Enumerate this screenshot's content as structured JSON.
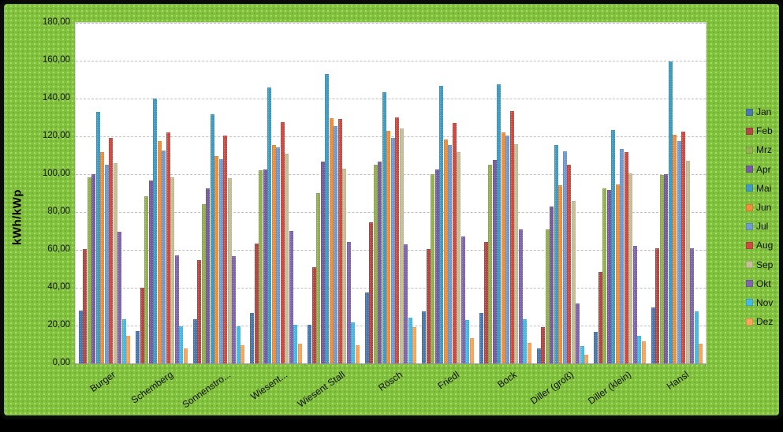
{
  "window": {
    "background_color": "#82C13D",
    "frame_color": "#0a0a0a",
    "plot_background": "#ffffff",
    "gridline_color": "#bfbfbf"
  },
  "chart_data": {
    "type": "bar",
    "title": "",
    "xlabel": "",
    "ylabel": "kWh/kWp",
    "ylim": [
      0,
      180
    ],
    "ytick_step": 20,
    "ytick_labels": [
      "0,00",
      "20,00",
      "40,00",
      "60,00",
      "80,00",
      "100,00",
      "120,00",
      "140,00",
      "160,00",
      "180,00"
    ],
    "grid": true,
    "legend_position": "right",
    "categories": [
      "Burger",
      "Schemberg",
      "Sonnenstro...",
      "Wiesent...",
      "Wiesent Stall",
      "Rösch",
      "Friedl",
      "Bock",
      "Diller (groß)",
      "Diller (klein)",
      "Hansl"
    ],
    "series": [
      {
        "name": "Jan",
        "color": "#4A78AE",
        "values": [
          28,
          17,
          23.5,
          26.5,
          20.5,
          37.5,
          27.5,
          26.5,
          8,
          16.5,
          29.5
        ]
      },
      {
        "name": "Feb",
        "color": "#B04846",
        "values": [
          60.5,
          40,
          54.5,
          63.5,
          51,
          74.5,
          60.5,
          64,
          19,
          48.5,
          61
        ]
      },
      {
        "name": "Mrz",
        "color": "#94B152",
        "values": [
          98.5,
          88.5,
          84,
          102,
          90,
          105,
          100,
          105,
          71,
          92.5,
          99.5
        ]
      },
      {
        "name": "Apr",
        "color": "#775C9E",
        "values": [
          100,
          96.5,
          92.5,
          102.5,
          106.5,
          106.5,
          102.5,
          107.5,
          83,
          91.5,
          100
        ]
      },
      {
        "name": "Mai",
        "color": "#3F9BC1",
        "values": [
          133,
          140,
          131.5,
          146,
          153,
          143.5,
          146.5,
          147.5,
          115.5,
          123.5,
          159.5
        ]
      },
      {
        "name": "Jun",
        "color": "#F08F3B",
        "values": [
          111.5,
          117.5,
          109.5,
          115.5,
          129.5,
          123,
          118.5,
          122,
          94,
          94.5,
          121
        ]
      },
      {
        "name": "Jul",
        "color": "#6E9CD2",
        "values": [
          105,
          112.5,
          108,
          114,
          125.5,
          119,
          115.5,
          120.5,
          112,
          113.5,
          117.5
        ]
      },
      {
        "name": "Aug",
        "color": "#CB4B43",
        "values": [
          119,
          122,
          120.5,
          127.5,
          129,
          130,
          127,
          133.5,
          105,
          111.5,
          122.5
        ]
      },
      {
        "name": "Sep",
        "color": "#C6BF98",
        "values": [
          106,
          98.5,
          98,
          111,
          103,
          124,
          111.5,
          116,
          86,
          100.5,
          107
        ]
      },
      {
        "name": "Okt",
        "color": "#8066AC",
        "values": [
          69.5,
          57,
          56.5,
          70,
          64,
          63,
          67,
          71,
          31.5,
          62,
          61
        ]
      },
      {
        "name": "Nov",
        "color": "#45BBE4",
        "values": [
          23.5,
          19.5,
          19.5,
          20.5,
          21.5,
          24,
          23,
          23.5,
          9,
          14.5,
          27.5
        ]
      },
      {
        "name": "Dez",
        "color": "#FAA55B",
        "values": [
          14.5,
          8,
          9.5,
          10.5,
          9.5,
          19,
          13.5,
          11,
          4.5,
          11.5,
          10.5
        ]
      }
    ]
  }
}
